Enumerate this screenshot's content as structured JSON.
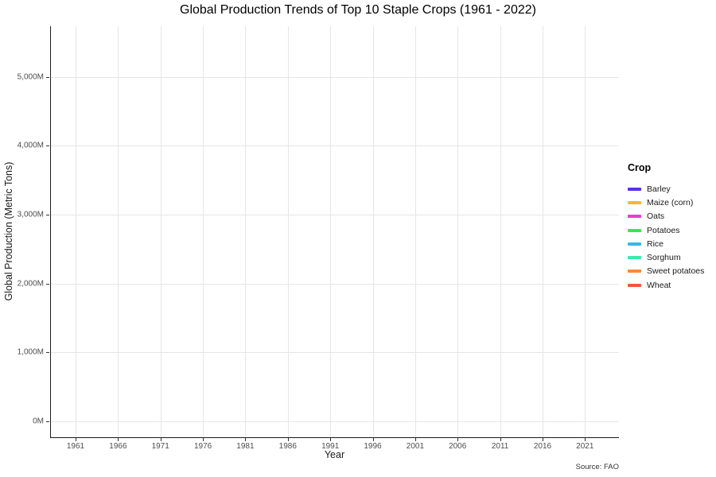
{
  "chart_data": {
    "type": "line",
    "title": "Global Production Trends of Top 10 Staple Crops (1961 - 2022)",
    "xlabel": "Year",
    "ylabel": "Global Production (Metric Tons)",
    "caption": "Source: FAO",
    "x_ticks": [
      1961,
      1966,
      1971,
      1976,
      1981,
      1986,
      1991,
      1996,
      2001,
      2006,
      2011,
      2016,
      2021
    ],
    "y_ticks": [
      {
        "value": 0,
        "label": "0M"
      },
      {
        "value": 1000,
        "label": "1,000M"
      },
      {
        "value": 2000,
        "label": "2,000M"
      },
      {
        "value": 3000,
        "label": "3,000M"
      },
      {
        "value": 4000,
        "label": "4,000M"
      },
      {
        "value": 5000,
        "label": "5,000M"
      }
    ],
    "xlim": [
      1958,
      2025
    ],
    "ylim": [
      -230,
      5734
    ],
    "grid": "major-only",
    "panel_empty": true,
    "legend_position": "right",
    "legend_title": "Crop",
    "series": [
      {
        "name": "Barley",
        "color": "#5733e6",
        "values": []
      },
      {
        "name": "Maize (corn)",
        "color": "#fdb338",
        "values": []
      },
      {
        "name": "Oats",
        "color": "#ea3bcf",
        "values": []
      },
      {
        "name": "Potatoes",
        "color": "#35e84e",
        "values": []
      },
      {
        "name": "Rice",
        "color": "#38b6ea",
        "values": []
      },
      {
        "name": "Sorghum",
        "color": "#38eda9",
        "values": []
      },
      {
        "name": "Sweet potatoes",
        "color": "#fa8a38",
        "values": []
      },
      {
        "name": "Wheat",
        "color": "#f85240",
        "values": []
      }
    ],
    "colors": {
      "gridline": "#e6e6e6",
      "axis_line": "#1a1a1a",
      "tick_label": "#4d4d4d",
      "background": "#ffffff"
    }
  }
}
